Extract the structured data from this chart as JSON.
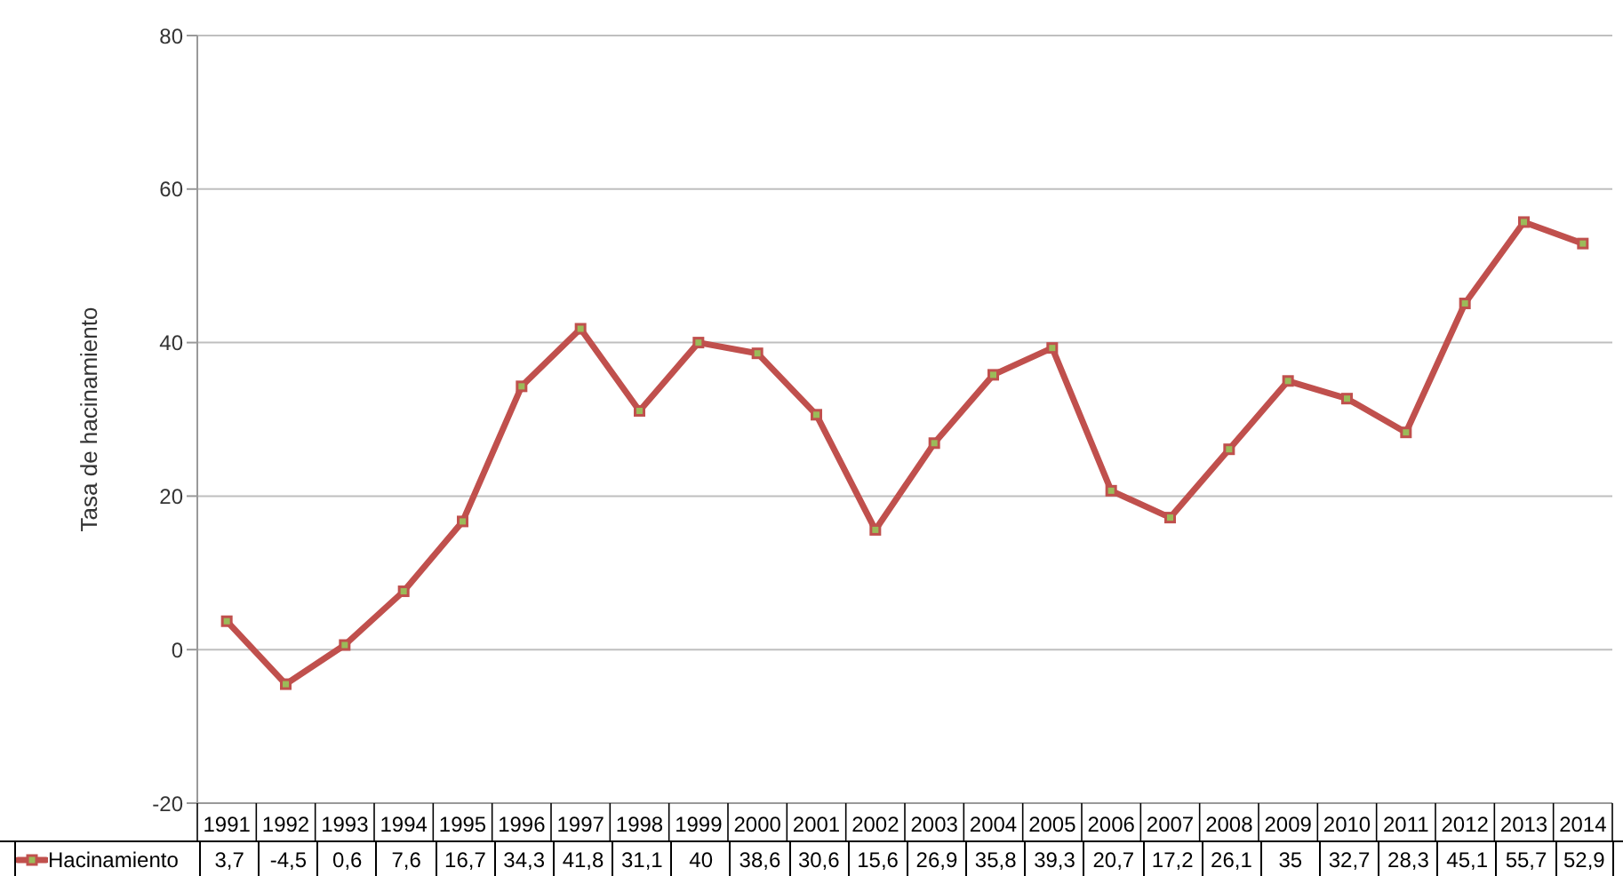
{
  "chart_data": {
    "type": "line",
    "ylabel": "Tasa de hacinamiento",
    "categories": [
      "1991",
      "1992",
      "1993",
      "1994",
      "1995",
      "1996",
      "1997",
      "1998",
      "1999",
      "2000",
      "2001",
      "2002",
      "2003",
      "2004",
      "2005",
      "2006",
      "2007",
      "2008",
      "2009",
      "2010",
      "2011",
      "2012",
      "2013",
      "2014"
    ],
    "series": [
      {
        "name": "Hacinamiento",
        "color": "#c0504d",
        "values": [
          3.7,
          -4.5,
          0.6,
          7.6,
          16.7,
          34.3,
          41.8,
          31.1,
          40,
          38.6,
          30.6,
          15.6,
          26.9,
          35.8,
          39.3,
          20.7,
          17.2,
          26.1,
          35,
          32.7,
          28.3,
          45.1,
          55.7,
          52.9
        ],
        "value_labels": [
          "3,7",
          "-4,5",
          "0,6",
          "7,6",
          "16,7",
          "34,3",
          "41,8",
          "31,1",
          "40",
          "38,6",
          "30,6",
          "15,6",
          "26,9",
          "35,8",
          "39,3",
          "20,7",
          "17,2",
          "26,1",
          "35",
          "32,7",
          "28,3",
          "45,1",
          "55,7",
          "52,9"
        ]
      }
    ],
    "ylim": [
      -20,
      80
    ],
    "yticks": [
      -20,
      0,
      20,
      40,
      60,
      80
    ],
    "grid": "y",
    "marker": "square",
    "line_style": "solid",
    "legend": "bottom left"
  }
}
